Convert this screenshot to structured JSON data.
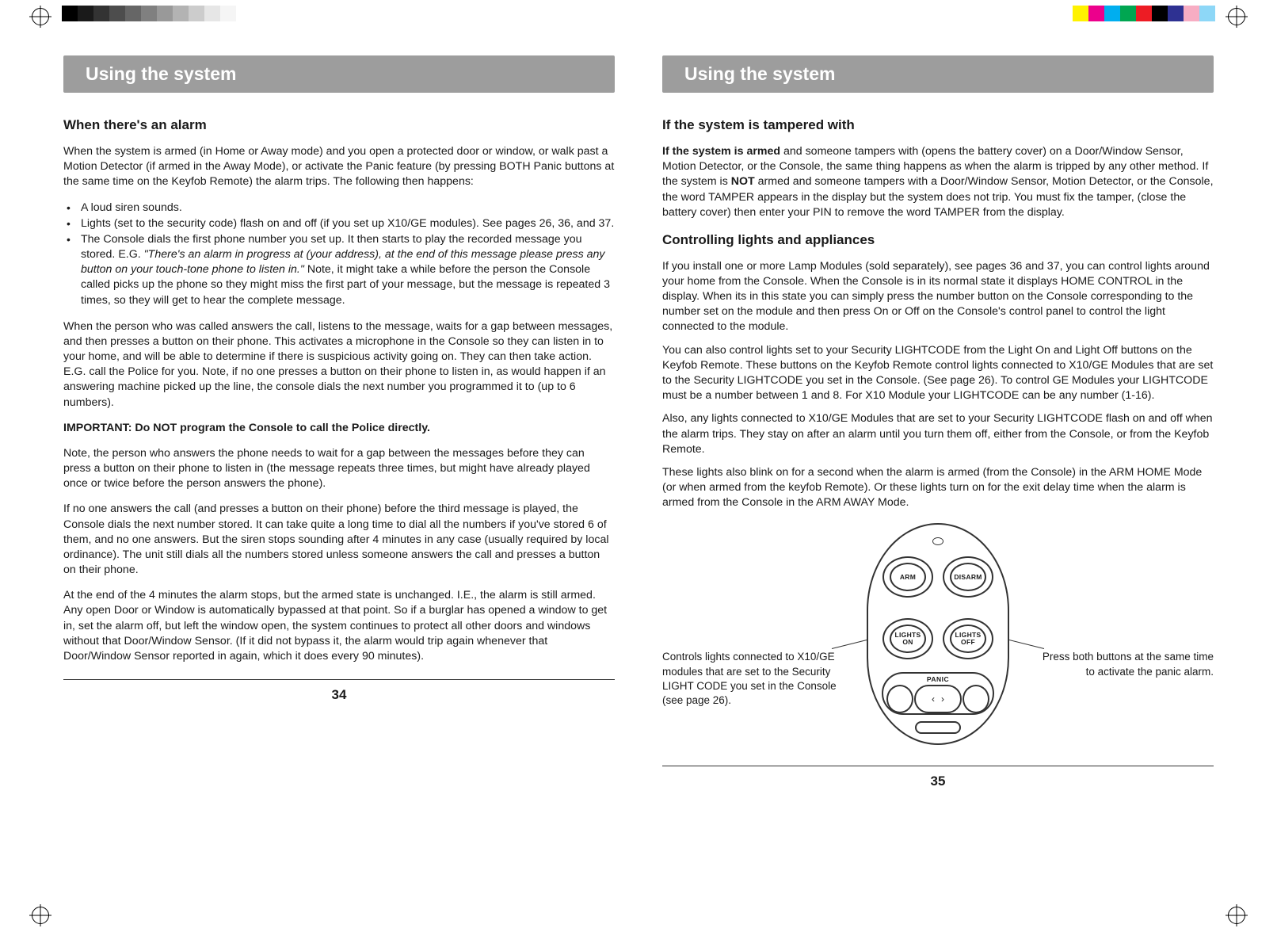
{
  "registration": {
    "left_swatches": [
      "#000000",
      "#1a1a1a",
      "#333333",
      "#4d4d4d",
      "#666666",
      "#808080",
      "#999999",
      "#b3b3b3",
      "#cccccc",
      "#e6e6e6",
      "#f5f5f5",
      "#ffffff"
    ],
    "right_swatches": [
      "#ffffff",
      "#fff200",
      "#ec008c",
      "#00aeef",
      "#00a651",
      "#ed1c24",
      "#000000",
      "#2e3192",
      "#f7adc3",
      "#8dd7f7"
    ]
  },
  "left_page": {
    "section_title": "Using the system",
    "h1": "When there's an alarm",
    "intro": "When the system is armed (in Home or Away mode) and you open a protected door or window, or walk past a Motion Detector (if armed in the Away Mode), or activate the Panic feature (by pressing BOTH Panic buttons at the same time on the Keyfob Remote) the alarm trips. The following then happens:",
    "bullets": [
      "A loud siren sounds.",
      "Lights (set to the security code) flash on and off (if you set up X10/GE modules). See pages 26, 36, and 37.",
      "The Console dials the first phone number you set up. It then starts to play the recorded message you stored. E.G. "
    ],
    "bullet3_italic": "\"There's an alarm in progress at (your address), at the end of this message please press any button on your touch-tone phone to listen in.\"",
    "bullet3_tail": " Note, it might take a while before the person the Console called picks up the phone so they might miss the first part of your message, but the message is repeated 3 times, so they will get to hear the complete message.",
    "p2": "When the person who was called answers the call, listens to the message, waits for a gap between messages, and then presses a button on their phone. This activates a microphone in the Console so they can listen in to your home, and will be able to determine if there is suspicious activity going on. They can then take action. E.G. call the Police for you. Note, if no one presses a button on their phone to listen in, as would happen if an answering machine picked up the line, the console dials the next number you programmed it to (up to 6 numbers).",
    "important": "IMPORTANT: Do NOT program the Console to call the Police directly.",
    "p3": "Note, the person who answers the phone needs to wait for a gap between the messages before they can press a button on their phone to listen in (the message repeats three times, but might have already played once or twice before the person answers the phone).",
    "p4": "If no one answers the call (and presses a button on their phone) before the third message is played, the Console dials the next number stored. It can take quite a long time to dial all the numbers if you've stored 6 of them, and no one answers. But the siren stops sounding after 4 minutes in any case (usually required by local ordinance). The unit still dials all the numbers stored unless someone answers the call and presses a button on their phone.",
    "p5": "At the end of the 4 minutes the alarm stops, but the armed state is unchanged. I.E., the alarm is still armed. Any open Door or Window is automatically bypassed at that point. So if a burglar has opened a window to get in, set the alarm off, but left the window open, the system continues to protect all other doors and windows without that Door/Window Sensor. (If it did not bypass it, the alarm would trip again whenever that Door/Window Sensor reported in again, which it does every 90 minutes).",
    "page_number": "34"
  },
  "right_page": {
    "section_title": "Using the system",
    "h1": "If the system is tampered with",
    "p1a": "If the system is armed",
    "p1b": " and someone tampers with (opens the battery cover) on a Door/Window Sensor, Motion Detector, or the Console, the same thing happens as when the alarm is tripped by any other method. If the system is ",
    "p1c": "NOT",
    "p1d": " armed and someone tampers with a Door/Window Sensor, Motion Detector, or the Console, the word TAMPER appears in the display but the system does not trip. You must fix the tamper, (close the battery cover) then enter your PIN to remove the word TAMPER from the display.",
    "h2": "Controlling lights and appliances",
    "p2": "If you install one or more Lamp Modules (sold separately), see pages 36 and 37, you can control lights around your home from the Console. When the Console is in its normal state it displays HOME CONTROL in the display. When its in this state you can simply press the number button on the Console corresponding to the number set on the module and then press On or Off on the Console's control panel to control the light connected to the module.",
    "p3": "You can also control lights set to your Security LIGHTCODE from the Light On and Light Off buttons on the Keyfob Remote. These buttons on the Keyfob Remote control lights connected to X10/GE Modules that are set to the Security LIGHTCODE you set in the Console. (See page 26). To control GE Modules your LIGHTCODE must be a number between 1 and 8. For X10 Module your LIGHTCODE can be any number (1-16).",
    "p4": "Also, any lights connected to X10/GE Modules that are set to your Security LIGHTCODE flash on and off when the alarm trips. They stay on after an alarm until you turn them off, either from the Console, or from the Keyfob Remote.",
    "p5": "These lights also blink on for a second when the alarm is armed (from the Console) in the ARM HOME Mode (or when armed from the keyfob Remote).  Or these lights turn on for the exit delay time when the alarm is armed from the Console in the ARM AWAY Mode.",
    "remote": {
      "arm": "ARM",
      "disarm": "DISARM",
      "lights_on": "LIGHTS ON",
      "lights_off": "LIGHTS OFF",
      "panic": "PANIC"
    },
    "callout_left": "Controls lights connected to X10/GE modules that are set to the Security LIGHT CODE you set in the Console (see page 26).",
    "callout_right": "Press both buttons at the same time to activate the panic alarm.",
    "page_number": "35"
  }
}
